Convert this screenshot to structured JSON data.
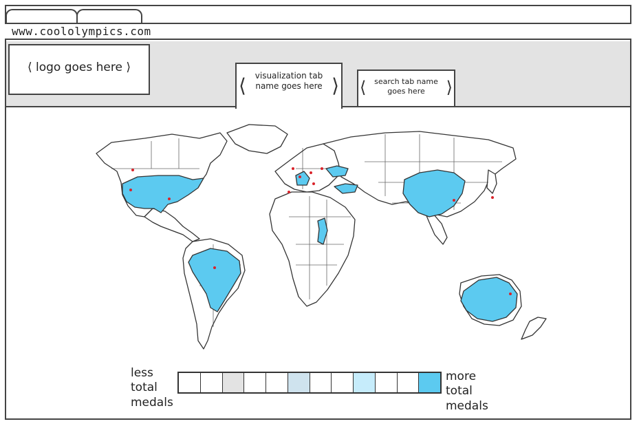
{
  "browser": {
    "url": "www.coololympics.com"
  },
  "header": {
    "logo_text": "logo goes here",
    "tabs": [
      {
        "label_line1": "visualization tab",
        "label_line2": "name goes here",
        "active": true
      },
      {
        "label_line1": "search tab name",
        "label_line2": "goes here",
        "active": false
      }
    ]
  },
  "map": {
    "highlight_color": "#5ccaf0",
    "marker_color": "#d9232a",
    "land_color": "#ffffff",
    "outline_color": "#333333",
    "highlighted_countries": [
      "United States",
      "Brazil",
      "China",
      "Australia",
      "France",
      "Turkey",
      "Ukraine",
      "Chad"
    ]
  },
  "legend": {
    "low_label": [
      "less",
      "total",
      "medals"
    ],
    "high_label": [
      "more",
      "total",
      "medals"
    ],
    "cells": [
      "#ffffff",
      "#ffffff",
      "#e3e3e3",
      "#ffffff",
      "#ffffff",
      "#cfe3ee",
      "#ffffff",
      "#ffffff",
      "#c6ecfb",
      "#ffffff",
      "#ffffff",
      "#5ccaf0"
    ]
  }
}
